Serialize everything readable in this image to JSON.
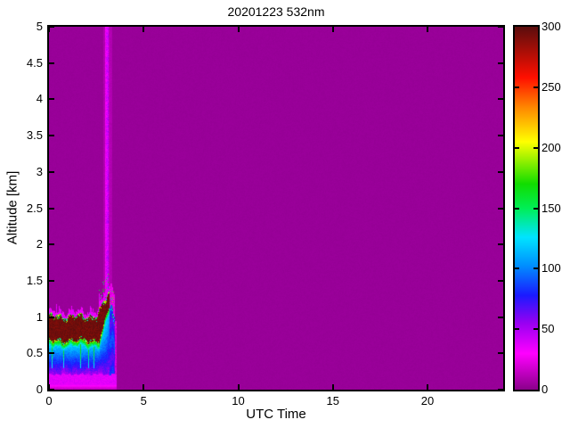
{
  "chart_data": {
    "type": "heatmap",
    "title": "20201223 532nm",
    "xlabel": "UTC Time",
    "ylabel": "Altitude [km]",
    "xlim": [
      0,
      24
    ],
    "ylim": [
      0,
      5
    ],
    "xticks": [
      0,
      5,
      10,
      15,
      20
    ],
    "yticks": [
      0,
      0.5,
      1,
      1.5,
      2,
      2.5,
      3,
      3.5,
      4,
      4.5,
      5
    ],
    "grid": false,
    "legend": "none",
    "colorbar": {
      "position": "right",
      "min": 0,
      "max": 300,
      "ticks": [
        0,
        50,
        100,
        150,
        200,
        250,
        300
      ],
      "stops": [
        [
          0,
          "#8a008a"
        ],
        [
          30,
          "#ff00ff"
        ],
        [
          55,
          "#9900f2"
        ],
        [
          78,
          "#1a1aff"
        ],
        [
          103,
          "#0090ff"
        ],
        [
          126,
          "#00e4ff"
        ],
        [
          150,
          "#00ee55"
        ],
        [
          170,
          "#11dd00"
        ],
        [
          205,
          "#ffff00"
        ],
        [
          233,
          "#ff8800"
        ],
        [
          258,
          "#ff0f00"
        ],
        [
          300,
          "#5a0d0d"
        ]
      ]
    },
    "background_value": 3,
    "features": {
      "description": "Lidar backscatter: data present only from 0 to ~3.55 UTC. Layered boundary-layer aerosol: bright magenta near-ground band below ~0.21 km, blue/cyan mixed layer up to ~0.6 km, dense dark-red aerosol layer ~0.66-1.0 km whose top rises to ~1.4 km by 3.1 UTC, magenta spikes above layer top, and a full-height vertical magenta plume near 3.1 UTC. Rest of plot is uniform background (value ~0).",
      "data_end_time": 3.56,
      "ground_band": {
        "top_km": 0.21,
        "value": 36
      },
      "mixed_layer": {
        "value_low": 46,
        "value_high": 110
      },
      "aerosol_layer": {
        "base_km": 0.66,
        "top_km": 1.0,
        "value": 292,
        "rise_start_time": 2.55,
        "rise_rate_km_per_h": 0.55,
        "base_rise_start_time": 2.65,
        "base_rise_rate_km_per_h": 0.85,
        "end_time": 3.18
      },
      "spikes": {
        "max_height_km": 0.2,
        "value": 34
      },
      "plume": {
        "center_time": 3.09,
        "core_halfwidth_h": 0.075,
        "mid_halfwidth_h": 0.13,
        "halo_halfwidth_h": 0.24,
        "core_value": 40,
        "mid_value": 20,
        "halo_value": 9
      },
      "end_column": {
        "end_time": 3.47,
        "top_km": 1.12,
        "value": 66
      }
    }
  }
}
